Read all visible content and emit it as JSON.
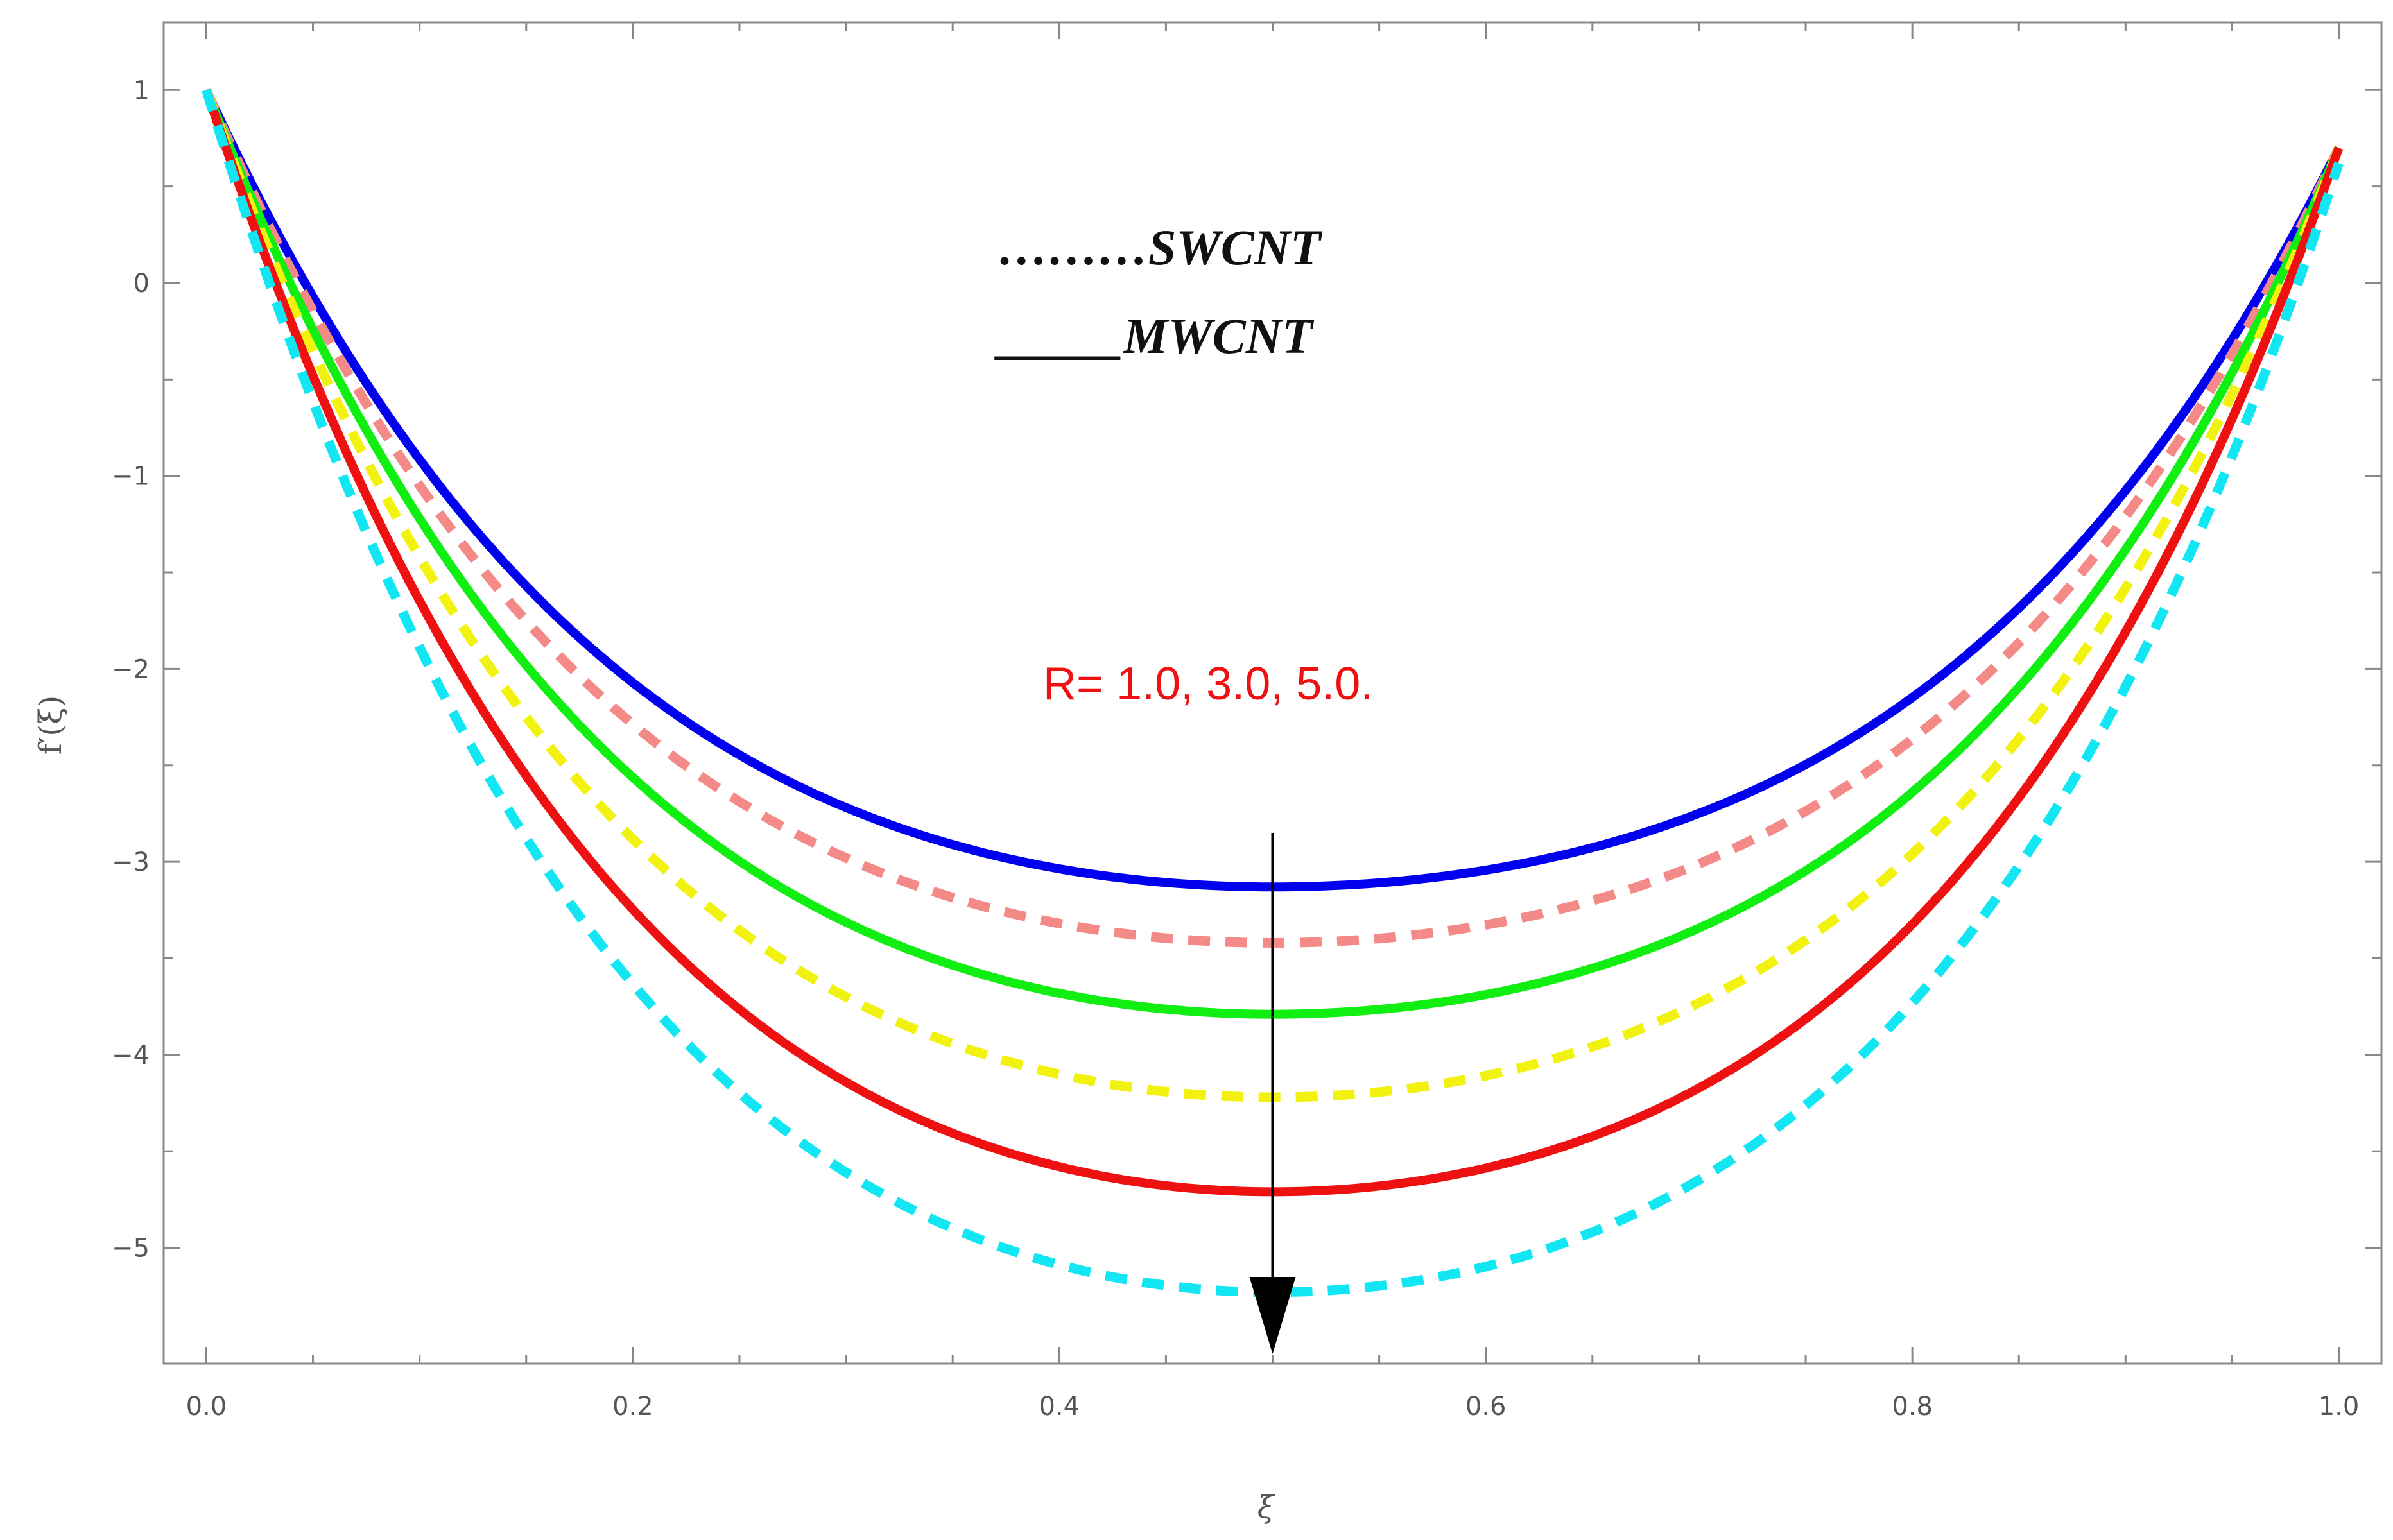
{
  "chart_data": {
    "type": "line",
    "title": "",
    "xlabel": "ξ",
    "ylabel": "f′(ξ)",
    "xlim": [
      -0.02,
      1.02
    ],
    "ylim": [
      -5.6,
      1.35
    ],
    "grid": false,
    "x_ticks": [
      0.0,
      0.05,
      0.1,
      0.15,
      0.2,
      0.25,
      0.3,
      0.35,
      0.4,
      0.45,
      0.5,
      0.55,
      0.6,
      0.65,
      0.7,
      0.75,
      0.8,
      0.85,
      0.9,
      0.95,
      1.0
    ],
    "x_tick_labels": [
      "0.0",
      "0.2",
      "0.4",
      "0.6",
      "0.8",
      "1.0"
    ],
    "x_tick_label_values": [
      0.0,
      0.2,
      0.4,
      0.6,
      0.8,
      1.0
    ],
    "y_ticks": [
      1,
      0.5,
      0,
      -0.5,
      -1,
      -1.5,
      -2,
      -2.5,
      -3,
      -3.5,
      -4,
      -4.5,
      -5
    ],
    "y_tick_labels": [
      "1",
      "0",
      "−1",
      "−2",
      "−3",
      "−4",
      "−5"
    ],
    "y_tick_label_values": [
      1,
      0,
      -1,
      -2,
      -3,
      -4,
      -5
    ],
    "series": [
      {
        "name": "MWCNT R=1.0",
        "color": "#0000ee",
        "style": "solid",
        "start": 1.0,
        "min": -3.13,
        "end": 0.7
      },
      {
        "name": "SWCNT R=1.0",
        "color": "#f48a88",
        "style": "dashed",
        "start": 1.0,
        "min": -3.42,
        "end": 0.7
      },
      {
        "name": "MWCNT R=3.0",
        "color": "#11ee11",
        "style": "solid",
        "start": 1.0,
        "min": -3.79,
        "end": 0.7
      },
      {
        "name": "SWCNT R=3.0",
        "color": "#f2f211",
        "style": "dashed",
        "start": 1.0,
        "min": -4.22,
        "end": 0.7
      },
      {
        "name": "MWCNT R=5.0",
        "color": "#ee1111",
        "style": "solid",
        "start": 1.0,
        "min": -4.71,
        "end": 0.7
      },
      {
        "name": "SWCNT R=5.0",
        "color": "#11e6f2",
        "style": "dashed",
        "start": 1.0,
        "min": -5.23,
        "end": 0.62
      }
    ],
    "legend": [
      {
        "label": "………SWCNT",
        "style": "dotted"
      },
      {
        "label": "_____MWCNT",
        "style": "solid"
      }
    ],
    "annotation": {
      "text": "R= 1.0, 3.0, 5.0.",
      "arrow_x": 0.5,
      "arrow_from_y": -2.85,
      "arrow_to_y": -5.55
    }
  },
  "legend": {
    "swcnt_label": "………SWCNT",
    "mwcnt_label": "_____MWCNT"
  },
  "annotation_text": "R= 1.0, 3.0, 5.0.",
  "axes": {
    "xlabel": "ξ",
    "ylabel": "f′(ξ)"
  }
}
